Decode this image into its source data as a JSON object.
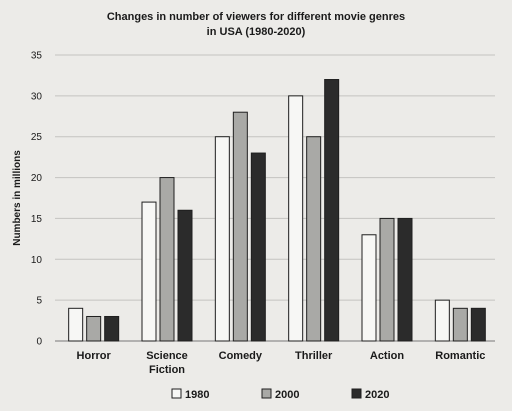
{
  "chart_data": {
    "type": "bar",
    "title": "Changes in number of viewers for different movie genres in USA (1980-2020)",
    "title_lines": [
      "Changes in number of viewers for different movie genres",
      "in USA (1980-2020)"
    ],
    "ylabel": "Numbers in millions",
    "xlabel": "",
    "ylim": [
      0,
      35
    ],
    "yticks": [
      0,
      5,
      10,
      15,
      20,
      25,
      30,
      35
    ],
    "grid": true,
    "legend_position": "bottom",
    "categories": [
      [
        "Horror"
      ],
      [
        "Science",
        "Fiction"
      ],
      [
        "Comedy"
      ],
      [
        "Thriller"
      ],
      [
        "Action"
      ],
      [
        "Romantic"
      ]
    ],
    "series": [
      {
        "name": "1980",
        "color": "#f7f7f5",
        "values": [
          4,
          17,
          25,
          30,
          13,
          5
        ]
      },
      {
        "name": "2000",
        "color": "#a9a9a6",
        "values": [
          3,
          20,
          28,
          25,
          15,
          4
        ]
      },
      {
        "name": "2020",
        "color": "#2b2b2b",
        "values": [
          3,
          16,
          23,
          32,
          15,
          4
        ]
      }
    ]
  }
}
